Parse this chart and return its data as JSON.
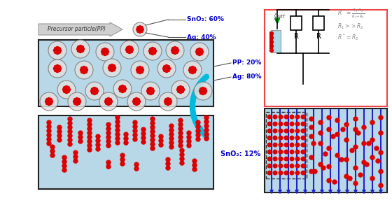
{
  "bg_color": "#ffffff",
  "light_blue": "#b8d8e8",
  "red_dot": "#dd0000",
  "text_blue": "#0000cc",
  "sno2_60": "SnO₂: 60%",
  "ag_40": "Ag: 40%",
  "pp_20": "PP: 20%",
  "ag_80": "Ag: 80%",
  "sno2_12": "SnO₂: 12%",
  "precursor_label": "Precursor particle(PP)",
  "curr_label": "Curr",
  "R_label": "R",
  "fig_width": 5.6,
  "fig_height": 3.0,
  "dpi": 100
}
